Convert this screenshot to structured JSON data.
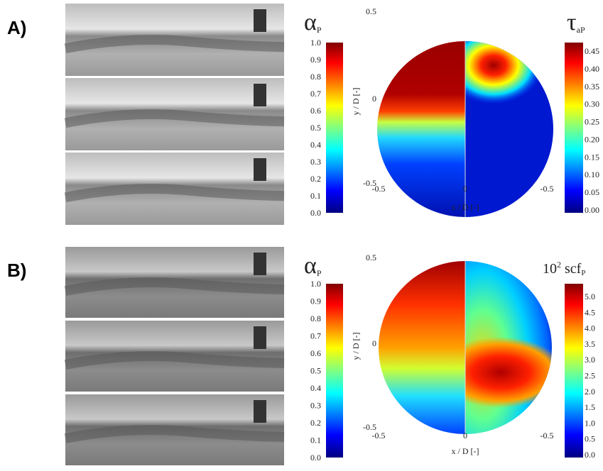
{
  "panels": [
    {
      "label": "A)",
      "left_colorbar": {
        "title": "α",
        "title_sub": "P",
        "ticks": [
          "1.0",
          "0.9",
          "0.8",
          "0.7",
          "0.6",
          "0.5",
          "0.4",
          "0.3",
          "0.2",
          "0.1",
          "0.0"
        ]
      },
      "plot": {
        "y_label": "y / D [-]",
        "x_label": "x / D [-]",
        "y_ticks": [
          "0.5",
          "0",
          "-0.5"
        ],
        "x_ticks": [
          "-0.5",
          "0",
          "-0.5"
        ]
      },
      "right_colorbar": {
        "title": "τ",
        "title_sub": "aP",
        "ticks": [
          "0.45",
          "0.40",
          "0.35",
          "0.30",
          "0.25",
          "0.20",
          "0.15",
          "0.10",
          "0.05",
          "0.00"
        ]
      }
    },
    {
      "label": "B)",
      "left_colorbar": {
        "title": "α",
        "title_sub": "P",
        "ticks": [
          "1.0",
          "0.9",
          "0.8",
          "0.7",
          "0.6",
          "0.5",
          "0.4",
          "0.3",
          "0.2",
          "0.1",
          "0.0"
        ]
      },
      "plot": {
        "y_label": "y / D [-]",
        "x_label": "x / D [-]",
        "y_ticks": [
          "0.5",
          "0",
          "-0.5"
        ],
        "x_ticks": [
          "-0.5",
          "0",
          "-0.5"
        ]
      },
      "right_colorbar": {
        "title": "10",
        "title_sup": "2",
        "title_main": " scf",
        "title_sub": "P",
        "ticks": [
          "5.0",
          "4.5",
          "4.0",
          "3.5",
          "3.0",
          "2.5",
          "2.0",
          "1.5",
          "1.0",
          "0.5",
          "0.0"
        ]
      }
    }
  ]
}
